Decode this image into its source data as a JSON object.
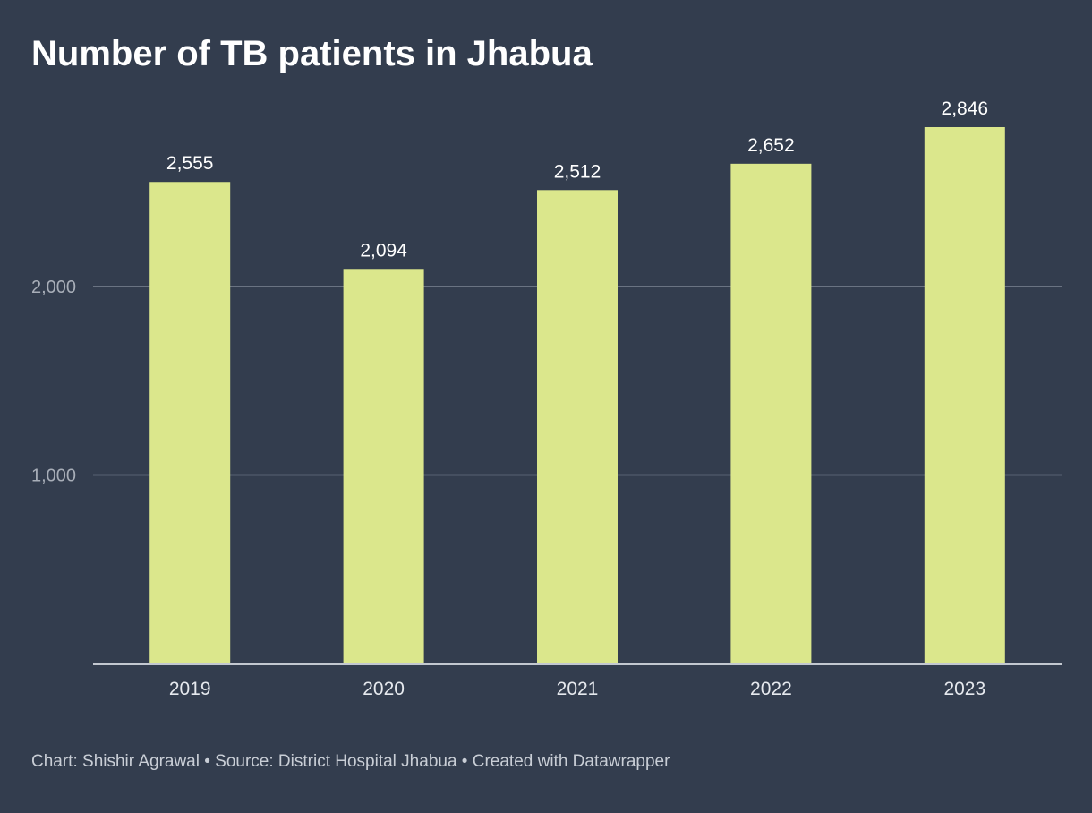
{
  "chart_data": {
    "type": "bar",
    "title": "Number of TB patients in Jhabua",
    "categories": [
      "2019",
      "2020",
      "2021",
      "2022",
      "2023"
    ],
    "values": [
      2555,
      2094,
      2512,
      2652,
      2846
    ],
    "value_labels": [
      "2,555",
      "2,094",
      "2,512",
      "2,652",
      "2,846"
    ],
    "xlabel": "",
    "ylabel": "",
    "ylim": [
      0,
      2846
    ],
    "yticks": [
      1000,
      2000
    ],
    "ytick_labels": [
      "1,000",
      "2,000"
    ],
    "grid": true,
    "legend": "none",
    "bar_color": "#dbe78c",
    "background_color": "#333d4e"
  },
  "footer": {
    "text": "Chart: Shishir Agrawal • Source: District Hospital Jhabua • Created with Datawrapper"
  }
}
